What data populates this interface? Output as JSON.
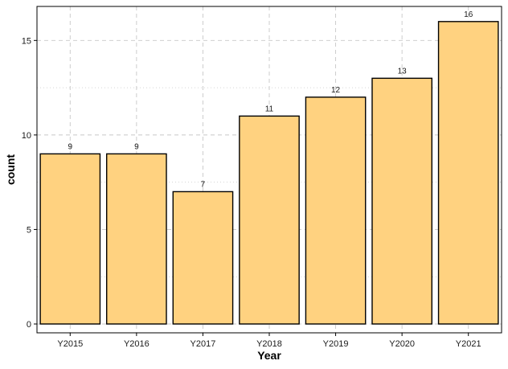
{
  "chart_data": {
    "type": "bar",
    "categories": [
      "Y2015",
      "Y2016",
      "Y2017",
      "Y2018",
      "Y2019",
      "Y2020",
      "Y2021"
    ],
    "values": [
      9,
      9,
      7,
      11,
      12,
      13,
      16
    ],
    "data_labels": [
      "9",
      "9",
      "7",
      "11",
      "12",
      "13",
      "16"
    ],
    "xlabel": "Year",
    "ylabel": "count",
    "ylim": [
      0,
      16.8
    ],
    "yticks": [
      0,
      5,
      10,
      15
    ],
    "ytick_labels": [
      "0",
      "5",
      "10",
      "15"
    ],
    "grid": true,
    "legend": "none",
    "colors": {
      "bar_fill": "#FFD280",
      "bar_stroke": "#000000",
      "grid": "#c8c8c8"
    }
  }
}
